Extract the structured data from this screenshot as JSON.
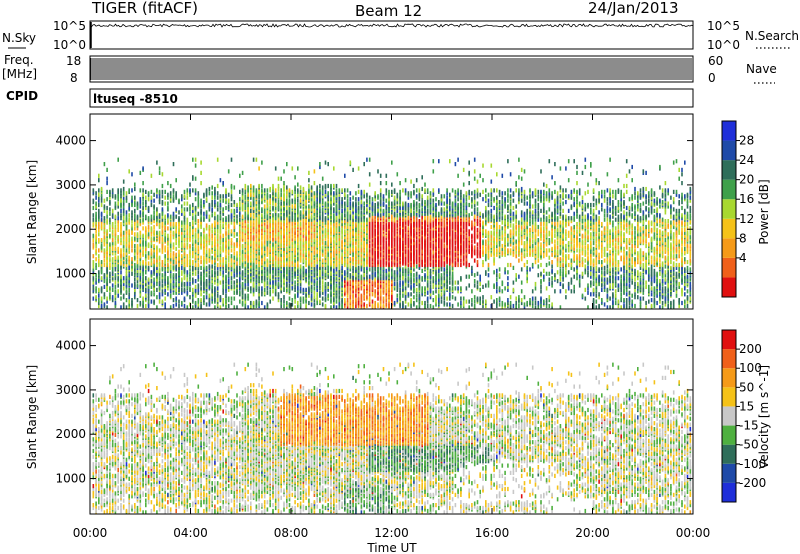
{
  "header": {
    "station": "TIGER (fitACF)",
    "beam": "Beam 12",
    "date": "24/Jan/2013"
  },
  "top_panels": {
    "nsky_label": "N.Sky",
    "nsky_ticks": [
      "10^5",
      "10^0"
    ],
    "nsearch_label": "N.Search",
    "freq_label_1": "Freq.",
    "freq_label_2": "[MHz]",
    "freq_ticks": [
      "18",
      "8"
    ],
    "nave_label": "Nave",
    "nave_ticks": [
      "60",
      "0"
    ],
    "cpid_label": "CPID",
    "cpid_value": "ltuseq -8510"
  },
  "xaxis": {
    "ticks": [
      "00:00",
      "04:00",
      "08:00",
      "12:00",
      "16:00",
      "20:00",
      "00:00"
    ],
    "label": "Time UT"
  },
  "colors": {
    "power_scale": [
      "#1f2fd9",
      "#1f4aa8",
      "#2f6e5a",
      "#3fa04a",
      "#a8d830",
      "#f5c218",
      "#f59a18",
      "#f0601a",
      "#e01010"
    ],
    "velocity_scale": [
      "#1f2fd9",
      "#1f4aa8",
      "#2f6e5a",
      "#4fb040",
      "#c8c8c8",
      "#f5c218",
      "#f59a18",
      "#f0601a",
      "#e01010"
    ]
  },
  "chart_data": [
    {
      "type": "heatmap",
      "title": "",
      "xlabel": "Time UT",
      "ylabel": "Slant Range [km]",
      "xlim": [
        0,
        24
      ],
      "ylim": [
        200,
        4600
      ],
      "yticks": [
        1000,
        2000,
        3000,
        4000
      ],
      "colorbar": {
        "label": "Power [dB]",
        "ticks": [
          "4",
          "8",
          "12",
          "16",
          "20",
          "24",
          "28"
        ],
        "range": [
          0,
          32
        ]
      }
    },
    {
      "type": "heatmap",
      "title": "",
      "xlabel": "Time UT",
      "ylabel": "Slant Range [km]",
      "xlim": [
        0,
        24
      ],
      "ylim": [
        200,
        4600
      ],
      "yticks": [
        1000,
        2000,
        3000,
        4000
      ],
      "colorbar": {
        "label": "Velocity [m s^-1]",
        "ticks": [
          "200",
          "100",
          "50",
          "15",
          "-15",
          "-50",
          "-100",
          "-200"
        ],
        "range": [
          -250,
          250
        ]
      }
    }
  ]
}
